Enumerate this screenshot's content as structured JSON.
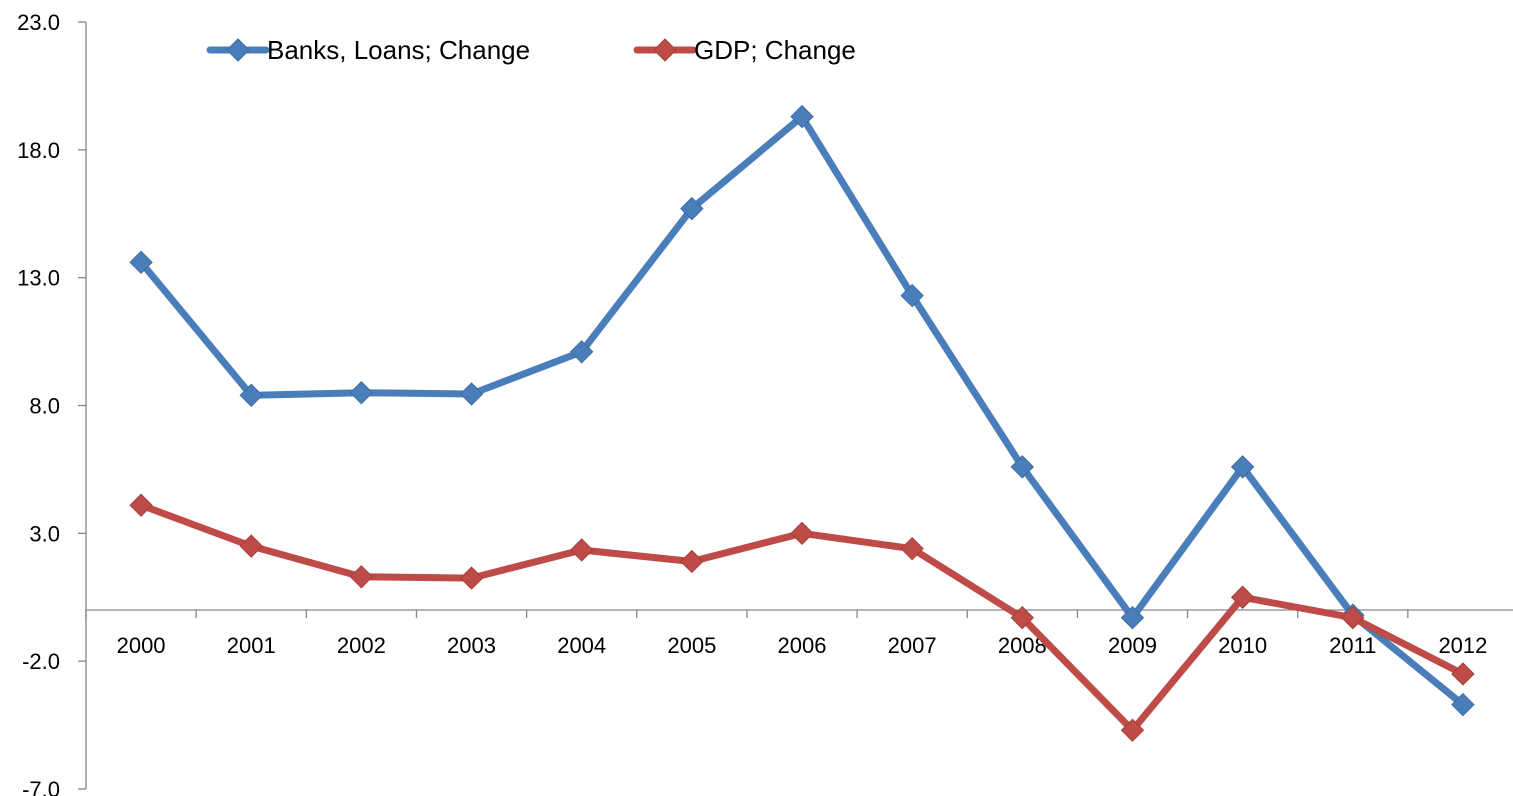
{
  "chart_data": {
    "type": "line",
    "title": "",
    "xlabel": "",
    "ylabel": "",
    "categories": [
      "2000",
      "2001",
      "2002",
      "2003",
      "2004",
      "2005",
      "2006",
      "2007",
      "2008",
      "2009",
      "2010",
      "2011",
      "2012"
    ],
    "y_tick_labels": [
      "23.0",
      "18.0",
      "13.0",
      "8.0",
      "3.0",
      "-2.0",
      "-7.0"
    ],
    "ylim": [
      -7,
      23
    ],
    "y_ticks": [
      23,
      18,
      13,
      8,
      3,
      -2,
      -7
    ],
    "grid": false,
    "legend_position": "top",
    "series": [
      {
        "name": "Banks, Loans; Change",
        "color": "#4a7ebb",
        "values": [
          13.6,
          8.4,
          8.5,
          8.45,
          10.1,
          15.7,
          19.3,
          12.3,
          5.6,
          -0.3,
          5.6,
          -0.2,
          -3.7
        ]
      },
      {
        "name": "GDP; Change",
        "color": "#be4b48",
        "values": [
          4.1,
          2.5,
          1.3,
          1.25,
          2.35,
          1.9,
          3.0,
          2.4,
          -0.3,
          -4.7,
          0.5,
          -0.3,
          -2.5
        ]
      }
    ]
  }
}
